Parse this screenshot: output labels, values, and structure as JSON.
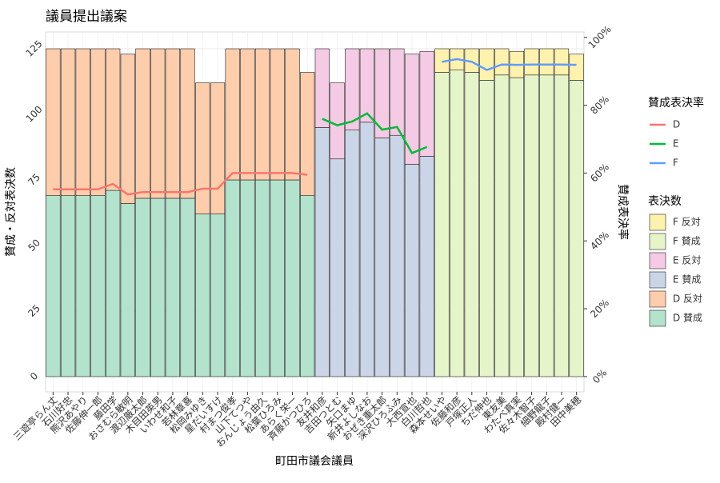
{
  "chart_data": {
    "type": "bar",
    "stacked": true,
    "title": "議員提出議案",
    "x_label": "町田市議会議員",
    "y_label": "賛成・反対表決数",
    "y2_label": "賛成表決率",
    "line_legend_title": "賛成表決率",
    "bar_legend_title": "表決数",
    "categories": [
      "三遊亭らん丈",
      "石川好忠",
      "熊沢あやり",
      "佐藤伸一郎",
      "藤田学",
      "おさむら敏明",
      "渡辺厳太郎",
      "木目田英男",
      "いわせ和子",
      "若林章喜",
      "松岡みゆき",
      "星だいすけ",
      "村まつ俊孝",
      "山下てつや",
      "おんじょう由久",
      "松葉ひろみ",
      "あらく栄一",
      "斉藤かつひろ",
      "友井和彦",
      "吉田つとむ",
      "矢口まゆ",
      "新井よしなお",
      "おぜき重太郎",
      "深沢ひろふみ",
      "大西宣也",
      "白川哲也",
      "森本せいや",
      "佐藤和彦",
      "戸塚正人",
      "ちだ伸也",
      "東友美",
      "わたべ真実",
      "佐々木智子",
      "細野龍子",
      "殿村健一",
      "田中美穂"
    ],
    "ylim": [
      -5.8,
      131.4
    ],
    "yticks": [
      0,
      25,
      50,
      75,
      100,
      125
    ],
    "y2lim": [
      -0.045,
      1.016
    ],
    "y2ticks": [
      {
        "value": 0,
        "label": "0%"
      },
      {
        "value": 0.2,
        "label": "20%"
      },
      {
        "value": 0.4,
        "label": "40%"
      },
      {
        "value": 0.6,
        "label": "60%"
      },
      {
        "value": 0.8,
        "label": "80%"
      },
      {
        "value": 1,
        "label": "100%"
      }
    ],
    "grid": true,
    "series": [
      {
        "name": "D 賛成",
        "color": "#b3e2cd",
        "values": [
          69,
          69,
          69,
          69,
          71,
          66,
          68,
          68,
          68,
          68,
          62,
          62,
          75,
          75,
          75,
          75,
          75,
          69,
          null,
          null,
          null,
          null,
          null,
          null,
          null,
          null,
          null,
          null,
          null,
          null,
          null,
          null,
          null,
          null,
          null,
          null
        ]
      },
      {
        "name": "D 反対",
        "color": "#fdcdac",
        "values": [
          56,
          56,
          56,
          56,
          54,
          57,
          57,
          57,
          57,
          57,
          50,
          50,
          50,
          50,
          50,
          50,
          50,
          47,
          null,
          null,
          null,
          null,
          null,
          null,
          null,
          null,
          null,
          null,
          null,
          null,
          null,
          null,
          null,
          null,
          null,
          null
        ]
      },
      {
        "name": "E 賛成",
        "color": "#cbd5e8",
        "values": [
          null,
          null,
          null,
          null,
          null,
          null,
          null,
          null,
          null,
          null,
          null,
          null,
          null,
          null,
          null,
          null,
          null,
          null,
          95,
          83,
          94,
          97,
          91,
          92,
          81,
          84,
          null,
          null,
          null,
          null,
          null,
          null,
          null,
          null,
          null,
          null
        ]
      },
      {
        "name": "E 反対",
        "color": "#f4cae4",
        "values": [
          null,
          null,
          null,
          null,
          null,
          null,
          null,
          null,
          null,
          null,
          null,
          null,
          null,
          null,
          null,
          null,
          null,
          null,
          30,
          29,
          31,
          28,
          34,
          33,
          42,
          40,
          null,
          null,
          null,
          null,
          null,
          null,
          null,
          null,
          null,
          null
        ]
      },
      {
        "name": "F 賛成",
        "color": "#e6f5c9",
        "values": [
          null,
          null,
          null,
          null,
          null,
          null,
          null,
          null,
          null,
          null,
          null,
          null,
          null,
          null,
          null,
          null,
          null,
          null,
          null,
          null,
          null,
          null,
          null,
          null,
          null,
          null,
          116,
          117,
          116,
          113,
          115,
          114,
          115,
          115,
          115,
          113
        ]
      },
      {
        "name": "F 反対",
        "color": "#fff2ae",
        "values": [
          null,
          null,
          null,
          null,
          null,
          null,
          null,
          null,
          null,
          null,
          null,
          null,
          null,
          null,
          null,
          null,
          null,
          null,
          null,
          null,
          null,
          null,
          null,
          null,
          null,
          null,
          9,
          8,
          9,
          12,
          10,
          10,
          10,
          10,
          10,
          10
        ]
      },
      {
        "name": "D",
        "color": "#f8766d",
        "type": "line",
        "axis": "y2",
        "values": [
          0.552,
          0.552,
          0.552,
          0.552,
          0.568,
          0.537,
          0.544,
          0.544,
          0.544,
          0.544,
          0.554,
          0.554,
          0.6,
          0.6,
          0.6,
          0.6,
          0.6,
          0.595,
          null,
          null,
          null,
          null,
          null,
          null,
          null,
          null,
          null,
          null,
          null,
          null,
          null,
          null,
          null,
          null,
          null,
          null
        ]
      },
      {
        "name": "E",
        "color": "#00ba38",
        "type": "line",
        "axis": "y2",
        "values": [
          null,
          null,
          null,
          null,
          null,
          null,
          null,
          null,
          null,
          null,
          null,
          null,
          null,
          null,
          null,
          null,
          null,
          null,
          0.76,
          0.741,
          0.752,
          0.776,
          0.728,
          0.736,
          0.659,
          0.677,
          null,
          null,
          null,
          null,
          null,
          null,
          null,
          null,
          null,
          null
        ]
      },
      {
        "name": "F",
        "color": "#619cff",
        "type": "line",
        "axis": "y2",
        "values": [
          null,
          null,
          null,
          null,
          null,
          null,
          null,
          null,
          null,
          null,
          null,
          null,
          null,
          null,
          null,
          null,
          null,
          null,
          null,
          null,
          null,
          null,
          null,
          null,
          null,
          null,
          0.928,
          0.936,
          0.928,
          0.904,
          0.92,
          0.919,
          0.92,
          0.92,
          0.92,
          0.919
        ]
      }
    ]
  }
}
